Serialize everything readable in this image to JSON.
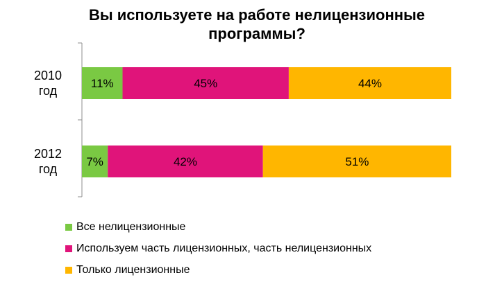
{
  "chart_data": {
    "type": "bar",
    "orientation": "horizontal",
    "stacked": true,
    "title": "Вы используете на работе нелицензионные\nпрограммы?",
    "categories": [
      "2010\nгод",
      "2012\nгод"
    ],
    "series": [
      {
        "name": "Все нелицензионные",
        "values": [
          11,
          7
        ],
        "labels": [
          "11%",
          "7%"
        ],
        "color": "#7ac943"
      },
      {
        "name": "Используем часть лицензионных, часть нелицензионных",
        "values": [
          45,
          42
        ],
        "labels": [
          "45%",
          "42%"
        ],
        "color": "#e0147a"
      },
      {
        "name": "Только лицензионные",
        "values": [
          44,
          51
        ],
        "labels": [
          "44%",
          "51%"
        ],
        "color": "#ffb600"
      }
    ],
    "xlim": [
      0,
      100
    ],
    "grid": false,
    "legend_position": "bottom-left"
  }
}
